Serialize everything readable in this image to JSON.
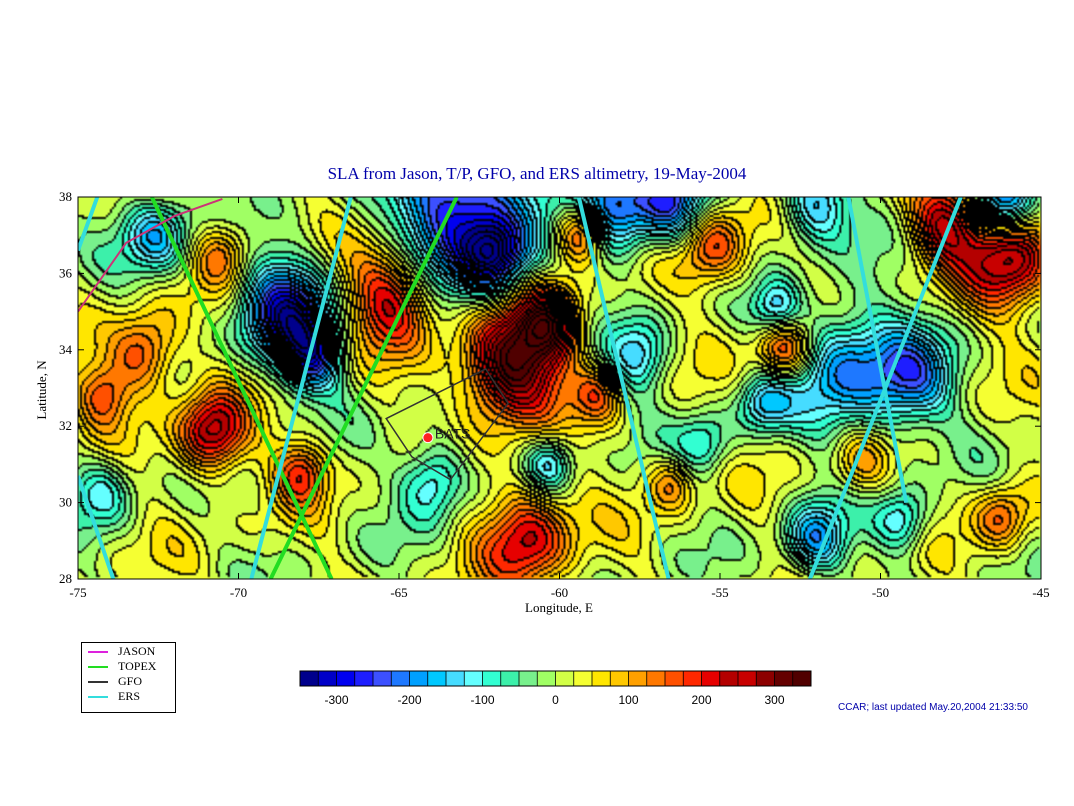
{
  "title": "SLA from Jason, T/P, GFO, and ERS altimetry, 19-May-2004",
  "x_axis": {
    "label": "Longitude, E",
    "ticks": [
      "-75",
      "-70",
      "-65",
      "-60",
      "-55",
      "-50",
      "-45"
    ]
  },
  "y_axis": {
    "label": "Latitude, N",
    "ticks": [
      "38",
      "36",
      "34",
      "32",
      "30",
      "28"
    ]
  },
  "map": {
    "lon_range": [
      -75,
      -45
    ],
    "lat_range": [
      28,
      38
    ],
    "station": {
      "name": "BATS",
      "lon": -64.1,
      "lat": 31.7,
      "color": "#ff2222"
    },
    "features": [
      {
        "lon": -68.5,
        "lat": 35.0,
        "v": -290,
        "s": 1.3
      },
      {
        "lon": -67.7,
        "lat": 33.8,
        "v": -230,
        "s": 0.9
      },
      {
        "lon": -63.0,
        "lat": 37.7,
        "v": -320,
        "s": 2.0
      },
      {
        "lon": -62.0,
        "lat": 36.4,
        "v": -250,
        "s": 0.9
      },
      {
        "lon": -58.5,
        "lat": 37.7,
        "v": -280,
        "s": 1.2
      },
      {
        "lon": -56.5,
        "lat": 37.8,
        "v": -240,
        "s": 1.0
      },
      {
        "lon": -52.0,
        "lat": 37.8,
        "v": -190,
        "s": 1.0
      },
      {
        "lon": -46.2,
        "lat": 37.8,
        "v": -260,
        "s": 0.9
      },
      {
        "lon": -72.5,
        "lat": 37.0,
        "v": -180,
        "s": 1.0
      },
      {
        "lon": -51.0,
        "lat": 33.5,
        "v": -210,
        "s": 1.6
      },
      {
        "lon": -49.0,
        "lat": 33.2,
        "v": -190,
        "s": 1.2
      },
      {
        "lon": -52.0,
        "lat": 29.0,
        "v": -200,
        "s": 0.9
      },
      {
        "lon": -49.3,
        "lat": 29.5,
        "v": -150,
        "s": 0.8
      },
      {
        "lon": -63.9,
        "lat": 30.6,
        "v": -170,
        "s": 1.0
      },
      {
        "lon": -60.3,
        "lat": 31.0,
        "v": -150,
        "s": 0.7
      },
      {
        "lon": -57.5,
        "lat": 33.8,
        "v": -140,
        "s": 0.9
      },
      {
        "lon": -55.5,
        "lat": 31.5,
        "v": -110,
        "s": 0.8
      },
      {
        "lon": -53.6,
        "lat": 32.6,
        "v": -150,
        "s": 0.8
      },
      {
        "lon": -53.2,
        "lat": 35.0,
        "v": -150,
        "s": 0.7
      },
      {
        "lon": -74.2,
        "lat": 30.3,
        "v": -110,
        "s": 0.9
      },
      {
        "lon": -61.5,
        "lat": 33.6,
        "v": 340,
        "s": 1.4
      },
      {
        "lon": -60.3,
        "lat": 34.7,
        "v": 250,
        "s": 0.9
      },
      {
        "lon": -59.3,
        "lat": 37.1,
        "v": 300,
        "s": 0.8
      },
      {
        "lon": -65.2,
        "lat": 35.4,
        "v": 230,
        "s": 1.3
      },
      {
        "lon": -70.8,
        "lat": 31.8,
        "v": 260,
        "s": 1.0
      },
      {
        "lon": -72.9,
        "lat": 33.9,
        "v": 180,
        "s": 1.0
      },
      {
        "lon": -74.2,
        "lat": 32.8,
        "v": 140,
        "s": 0.8
      },
      {
        "lon": -61.0,
        "lat": 29.1,
        "v": 220,
        "s": 1.3
      },
      {
        "lon": -53.0,
        "lat": 34.0,
        "v": 210,
        "s": 0.8
      },
      {
        "lon": -46.0,
        "lat": 36.5,
        "v": 270,
        "s": 1.3
      },
      {
        "lon": -48.0,
        "lat": 37.3,
        "v": 220,
        "s": 1.0
      },
      {
        "lon": -55.2,
        "lat": 36.7,
        "v": 170,
        "s": 1.0
      },
      {
        "lon": -70.5,
        "lat": 36.5,
        "v": 120,
        "s": 0.8
      },
      {
        "lon": -68.0,
        "lat": 30.8,
        "v": 160,
        "s": 0.8
      },
      {
        "lon": -56.5,
        "lat": 30.5,
        "v": 120,
        "s": 0.7
      },
      {
        "lon": -46.2,
        "lat": 29.6,
        "v": 140,
        "s": 0.8
      },
      {
        "lon": -50.6,
        "lat": 31.0,
        "v": 110,
        "s": 0.8
      },
      {
        "lon": -58.8,
        "lat": 32.8,
        "v": 120,
        "s": 0.7
      }
    ],
    "tracks": [
      {
        "mission": "TOPEX",
        "color": "#22dd22",
        "points": [
          [
            -72.7,
            38
          ],
          [
            -67.1,
            28
          ]
        ]
      },
      {
        "mission": "TOPEX",
        "color": "#22dd22",
        "points": [
          [
            -63.2,
            38
          ],
          [
            -69.0,
            28
          ]
        ]
      },
      {
        "mission": "JASON",
        "color": "#cc3377",
        "points": [
          [
            -75.0,
            35.0
          ],
          [
            -73.5,
            36.8
          ],
          [
            -72.0,
            37.5
          ],
          [
            -70.5,
            37.95
          ]
        ]
      },
      {
        "mission": "ERS",
        "color": "#33dddd",
        "points": [
          [
            -74.4,
            38
          ],
          [
            -75.0,
            36.6
          ]
        ]
      },
      {
        "mission": "ERS",
        "color": "#33dddd",
        "points": [
          [
            -75.0,
            30.7
          ],
          [
            -73.9,
            28
          ]
        ]
      },
      {
        "mission": "ERS",
        "color": "#33dddd",
        "points": [
          [
            -66.5,
            38
          ],
          [
            -69.6,
            28
          ]
        ]
      },
      {
        "mission": "ERS",
        "color": "#33dddd",
        "points": [
          [
            -59.4,
            38
          ],
          [
            -56.6,
            28
          ]
        ]
      },
      {
        "mission": "ERS",
        "color": "#33dddd",
        "points": [
          [
            -47.5,
            38
          ],
          [
            -52.2,
            28
          ]
        ]
      },
      {
        "mission": "ERS",
        "color": "#33dddd",
        "points": [
          [
            -51.0,
            38
          ],
          [
            -49.2,
            30.0
          ]
        ]
      }
    ],
    "box": [
      [
        -62.3,
        33.5
      ],
      [
        -65.4,
        32.2
      ],
      [
        -64.6,
        31.2
      ],
      [
        -63.4,
        30.6
      ],
      [
        -61.6,
        32.6
      ]
    ]
  },
  "legend": [
    {
      "label": "JASON",
      "color": "#dd22dd"
    },
    {
      "label": "TOPEX",
      "color": "#22dd22"
    },
    {
      "label": "GFO",
      "color": "#333333"
    },
    {
      "label": "ERS",
      "color": "#33dddd"
    }
  ],
  "colorbar": {
    "min": -350,
    "max": 350,
    "step": 25,
    "ticks": [
      "-300",
      "-200",
      "-100",
      "0",
      "100",
      "200",
      "300"
    ],
    "colors": [
      "#00008c",
      "#0000c8",
      "#0000f0",
      "#1e1eff",
      "#3c50ff",
      "#1e78ff",
      "#00a0ff",
      "#00c8ff",
      "#46dcff",
      "#64ffff",
      "#32ffd2",
      "#3cf0aa",
      "#78f08c",
      "#a0ff64",
      "#d2ff46",
      "#f5ff32",
      "#ffe600",
      "#ffc800",
      "#ffa000",
      "#ff7800",
      "#ff5000",
      "#ff2800",
      "#e60000",
      "#b40000",
      "#c80000",
      "#8c0000",
      "#640000",
      "#500000"
    ]
  },
  "credit": "CCAR; last updated May.20,2004 21:33:50"
}
